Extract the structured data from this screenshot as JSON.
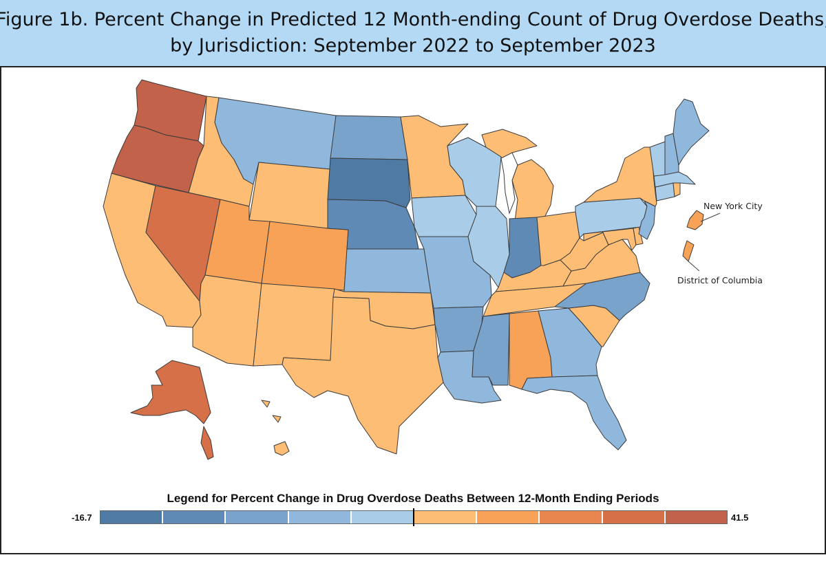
{
  "title": {
    "line1": "Figure 1b. Percent Change in Predicted 12 Month-ending Count of Drug Overdose Deaths,",
    "line2": "by Jurisdiction: September 2022 to September 2023"
  },
  "palette": [
    "#4e7aa4",
    "#5f8ab6",
    "#7aa3cb",
    "#90b7dc",
    "#a9cde8",
    "#fdbd74",
    "#f7a257",
    "#e98650",
    "#d57049",
    "#c3624a"
  ],
  "jurisdictions": [
    {
      "id": "WA",
      "name": "Washington",
      "bin": 9
    },
    {
      "id": "OR",
      "name": "Oregon",
      "bin": 9
    },
    {
      "id": "CA",
      "name": "California",
      "bin": 5
    },
    {
      "id": "NV",
      "name": "Nevada",
      "bin": 8
    },
    {
      "id": "ID",
      "name": "Idaho",
      "bin": 5
    },
    {
      "id": "MT",
      "name": "Montana",
      "bin": 3
    },
    {
      "id": "WY",
      "name": "Wyoming",
      "bin": 5
    },
    {
      "id": "UT",
      "name": "Utah",
      "bin": 6
    },
    {
      "id": "CO",
      "name": "Colorado",
      "bin": 6
    },
    {
      "id": "AZ",
      "name": "Arizona",
      "bin": 5
    },
    {
      "id": "NM",
      "name": "New Mexico",
      "bin": 5
    },
    {
      "id": "ND",
      "name": "North Dakota",
      "bin": 2
    },
    {
      "id": "SD",
      "name": "South Dakota",
      "bin": 0
    },
    {
      "id": "NE",
      "name": "Nebraska",
      "bin": 1
    },
    {
      "id": "KS",
      "name": "Kansas",
      "bin": 3
    },
    {
      "id": "OK",
      "name": "Oklahoma",
      "bin": 5
    },
    {
      "id": "TX",
      "name": "Texas",
      "bin": 5
    },
    {
      "id": "MN",
      "name": "Minnesota",
      "bin": 5
    },
    {
      "id": "IA",
      "name": "Iowa",
      "bin": 4
    },
    {
      "id": "MO",
      "name": "Missouri",
      "bin": 3
    },
    {
      "id": "AR",
      "name": "Arkansas",
      "bin": 2
    },
    {
      "id": "LA",
      "name": "Louisiana",
      "bin": 3
    },
    {
      "id": "WI",
      "name": "Wisconsin",
      "bin": 4
    },
    {
      "id": "IL",
      "name": "Illinois",
      "bin": 4
    },
    {
      "id": "MI",
      "name": "Michigan",
      "bin": 5
    },
    {
      "id": "IN",
      "name": "Indiana",
      "bin": 1
    },
    {
      "id": "OH",
      "name": "Ohio",
      "bin": 5
    },
    {
      "id": "KY",
      "name": "Kentucky",
      "bin": 5
    },
    {
      "id": "TN",
      "name": "Tennessee",
      "bin": 5
    },
    {
      "id": "MS",
      "name": "Mississippi",
      "bin": 2
    },
    {
      "id": "AL",
      "name": "Alabama",
      "bin": 6
    },
    {
      "id": "GA",
      "name": "Georgia",
      "bin": 3
    },
    {
      "id": "FL",
      "name": "Florida",
      "bin": 3
    },
    {
      "id": "SC",
      "name": "South Carolina",
      "bin": 5
    },
    {
      "id": "NC",
      "name": "North Carolina",
      "bin": 2
    },
    {
      "id": "VA",
      "name": "Virginia",
      "bin": 5
    },
    {
      "id": "WV",
      "name": "West Virginia",
      "bin": 5
    },
    {
      "id": "MD",
      "name": "Maryland",
      "bin": 5
    },
    {
      "id": "DE",
      "name": "Delaware",
      "bin": 5
    },
    {
      "id": "PA",
      "name": "Pennsylvania",
      "bin": 4
    },
    {
      "id": "NJ",
      "name": "New Jersey",
      "bin": 3
    },
    {
      "id": "NY",
      "name": "New York",
      "bin": 5
    },
    {
      "id": "CT",
      "name": "Connecticut",
      "bin": 4
    },
    {
      "id": "RI",
      "name": "Rhode Island",
      "bin": 5
    },
    {
      "id": "MA",
      "name": "Massachusetts",
      "bin": 4
    },
    {
      "id": "VT",
      "name": "Vermont",
      "bin": 4
    },
    {
      "id": "NH",
      "name": "New Hampshire",
      "bin": 3
    },
    {
      "id": "ME",
      "name": "Maine",
      "bin": 3
    },
    {
      "id": "AK",
      "name": "Alaska",
      "bin": 8
    },
    {
      "id": "HI",
      "name": "Hawaii",
      "bin": 5
    },
    {
      "id": "NYC",
      "name": "New York City",
      "bin": 6
    },
    {
      "id": "DC",
      "name": "District of Columbia",
      "bin": 6
    }
  ],
  "callouts": {
    "nyc": "New York City",
    "dc": "District of Columbia"
  },
  "legend": {
    "title": "Legend for Percent Change in Drug Overdose Deaths Between 12-Month Ending Periods",
    "min": "-16.7",
    "max": "41.5",
    "zero_after_bin": 4
  }
}
